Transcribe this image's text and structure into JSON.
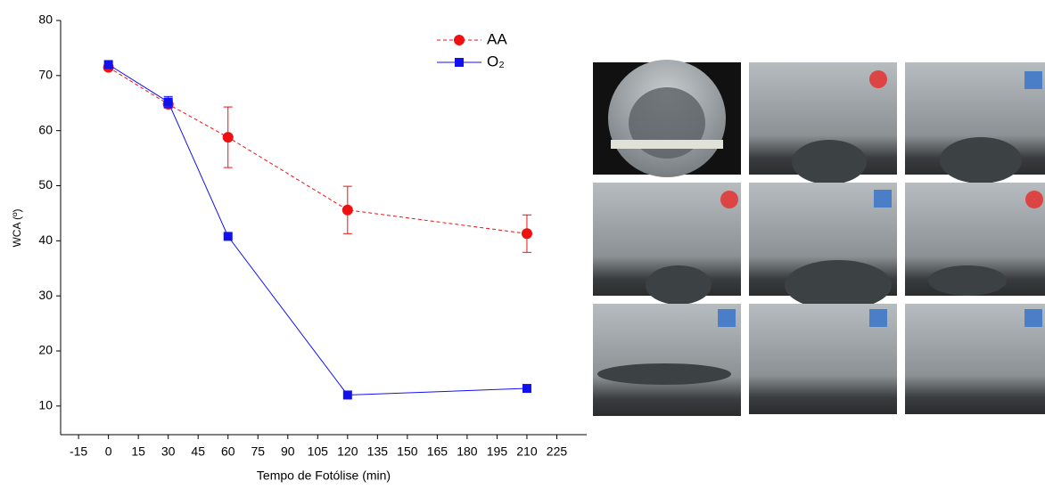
{
  "chart_data": {
    "type": "line",
    "x_label": "Tempo de Fotólise (min)",
    "y_label": "WCA (º)",
    "xlim": [
      -24,
      240
    ],
    "ylim": [
      4.8,
      80
    ],
    "xticks": [
      -15,
      0,
      15,
      30,
      45,
      60,
      75,
      90,
      105,
      120,
      135,
      150,
      165,
      180,
      195,
      210,
      225
    ],
    "yticks": [
      10,
      20,
      30,
      40,
      50,
      60,
      70,
      80
    ],
    "series": [
      {
        "name": "AA",
        "color": "#ee1111",
        "marker": "circle",
        "dashed": true,
        "x": [
          0,
          30,
          60,
          120,
          210
        ],
        "values": [
          71.5,
          64.8,
          58.8,
          45.6,
          41.3
        ],
        "errors": [
          null,
          0.7,
          5.5,
          4.3,
          3.4
        ]
      },
      {
        "name": "O₂",
        "color": "#1111ee",
        "marker": "square",
        "dashed": false,
        "x": [
          0,
          30,
          60,
          120,
          210
        ],
        "values": [
          72,
          65.2,
          40.8,
          12,
          13.2
        ],
        "errors": [
          null,
          1,
          null,
          null,
          null
        ]
      }
    ]
  }
}
